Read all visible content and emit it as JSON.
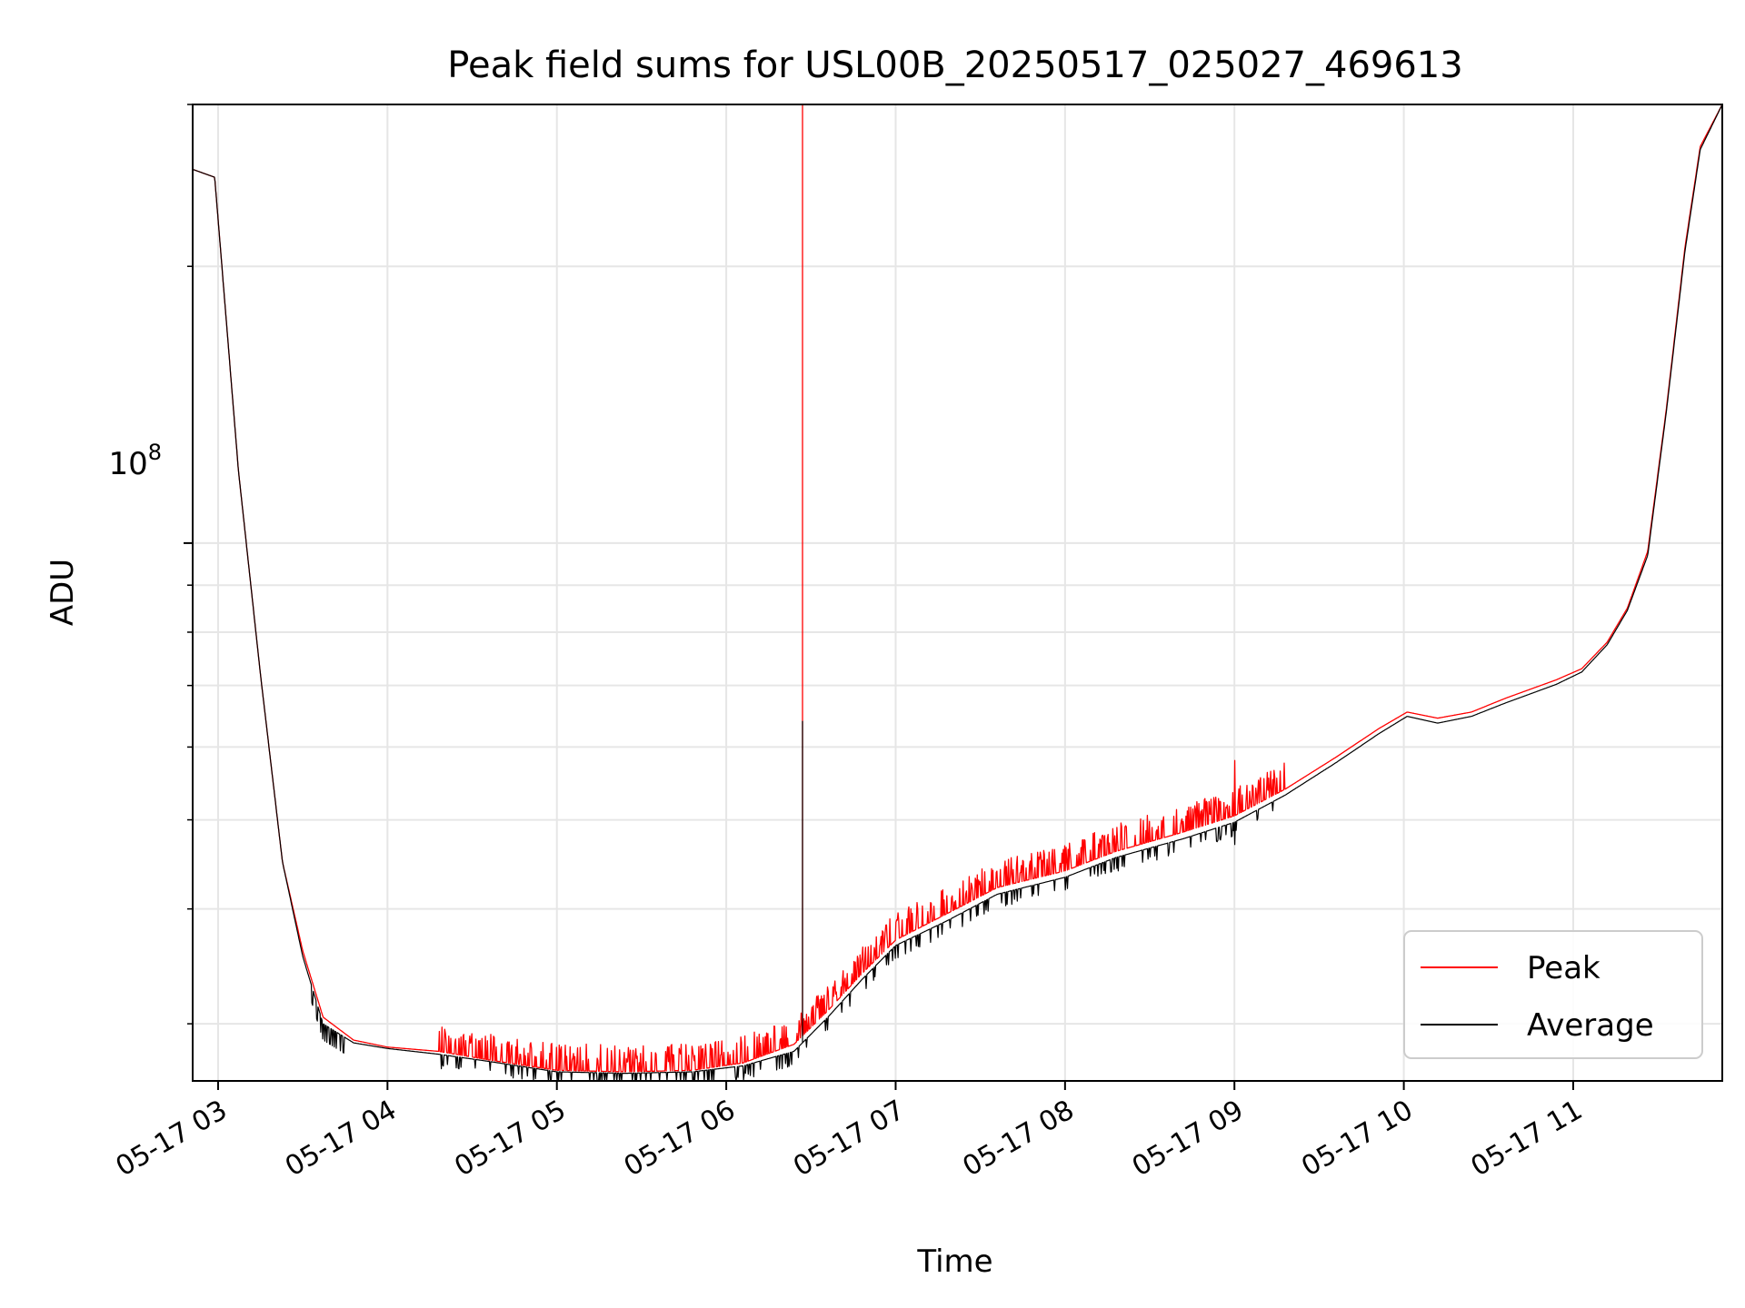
{
  "chart_data": {
    "type": "line",
    "title": "Peak field sums for USL00B_20250517_025027_469613",
    "xlabel": "Time",
    "ylabel": "ADU",
    "yscale": "log",
    "y_major_tick_label": {
      "base": "10",
      "exponent": "8",
      "value": 100000000
    },
    "x_tick_labels": [
      "05-17 03",
      "05-17 04",
      "05-17 05",
      "05-17 06",
      "05-17 07",
      "05-17 08",
      "05-17 09",
      "05-17 10",
      "05-17 11"
    ],
    "x_tick_hours": [
      3,
      4,
      5,
      6,
      7,
      8,
      9,
      10,
      11
    ],
    "xlim_hours": [
      2.85,
      11.88
    ],
    "ylim": [
      26000000,
      300000000
    ],
    "grid": true,
    "legend_position": "lower right",
    "series": [
      {
        "name": "Peak",
        "color": "#ff0000",
        "points": [
          [
            2.85,
            255000000
          ],
          [
            2.98,
            250000000
          ],
          [
            3.12,
            120000000
          ],
          [
            3.25,
            72000000
          ],
          [
            3.38,
            45000000
          ],
          [
            3.5,
            36000000
          ],
          [
            3.62,
            30500000
          ],
          [
            3.8,
            28800000
          ],
          [
            4.0,
            28300000
          ],
          [
            4.3,
            28000000
          ],
          [
            4.6,
            27400000
          ],
          [
            5.0,
            26700000
          ],
          [
            5.4,
            26600000
          ],
          [
            5.8,
            26700000
          ],
          [
            6.1,
            27200000
          ],
          [
            6.4,
            28500000
          ],
          [
            6.6,
            31000000
          ],
          [
            6.8,
            34000000
          ],
          [
            7.0,
            37000000
          ],
          [
            7.3,
            39500000
          ],
          [
            7.6,
            42200000
          ],
          [
            8.0,
            44000000
          ],
          [
            8.3,
            46200000
          ],
          [
            8.7,
            48500000
          ],
          [
            9.0,
            50500000
          ],
          [
            9.3,
            54000000
          ],
          [
            9.6,
            58500000
          ],
          [
            9.85,
            62800000
          ],
          [
            10.02,
            65500000
          ],
          [
            10.2,
            64500000
          ],
          [
            10.4,
            65500000
          ],
          [
            10.6,
            67800000
          ],
          [
            10.9,
            71000000
          ],
          [
            11.05,
            73000000
          ],
          [
            11.2,
            78000000
          ],
          [
            11.32,
            85000000
          ],
          [
            11.44,
            98000000
          ],
          [
            11.55,
            140000000
          ],
          [
            11.66,
            210000000
          ],
          [
            11.75,
            270000000
          ],
          [
            11.88,
            300000000
          ]
        ]
      },
      {
        "name": "Average",
        "color": "#000000",
        "points": [
          [
            2.85,
            255000000
          ],
          [
            2.98,
            250000000
          ],
          [
            3.12,
            120000000
          ],
          [
            3.25,
            72000000
          ],
          [
            3.38,
            45000000
          ],
          [
            3.5,
            35500000
          ],
          [
            3.62,
            30000000
          ],
          [
            3.8,
            28600000
          ],
          [
            4.0,
            28200000
          ],
          [
            4.3,
            27800000
          ],
          [
            4.6,
            27300000
          ],
          [
            5.0,
            26600000
          ],
          [
            5.4,
            26500000
          ],
          [
            5.8,
            26600000
          ],
          [
            6.1,
            27000000
          ],
          [
            6.4,
            28000000
          ],
          [
            6.6,
            30500000
          ],
          [
            6.8,
            33500000
          ],
          [
            7.0,
            36500000
          ],
          [
            7.3,
            38800000
          ],
          [
            7.6,
            41500000
          ],
          [
            8.0,
            43300000
          ],
          [
            8.3,
            45500000
          ],
          [
            8.7,
            47700000
          ],
          [
            9.0,
            49700000
          ],
          [
            9.3,
            53200000
          ],
          [
            9.6,
            57700000
          ],
          [
            9.85,
            62000000
          ],
          [
            10.02,
            64800000
          ],
          [
            10.2,
            63700000
          ],
          [
            10.4,
            64800000
          ],
          [
            10.6,
            67000000
          ],
          [
            10.9,
            70200000
          ],
          [
            11.05,
            72400000
          ],
          [
            11.2,
            77500000
          ],
          [
            11.32,
            84500000
          ],
          [
            11.44,
            97000000
          ],
          [
            11.55,
            139000000
          ],
          [
            11.66,
            208000000
          ],
          [
            11.75,
            268000000
          ],
          [
            11.88,
            300000000
          ]
        ]
      }
    ],
    "spike": {
      "hour": 6.45,
      "peak": 300000000,
      "average": 64000000
    },
    "secondary_spike": {
      "hour": 9.0,
      "peak": 58000000,
      "average": 47000000
    }
  }
}
